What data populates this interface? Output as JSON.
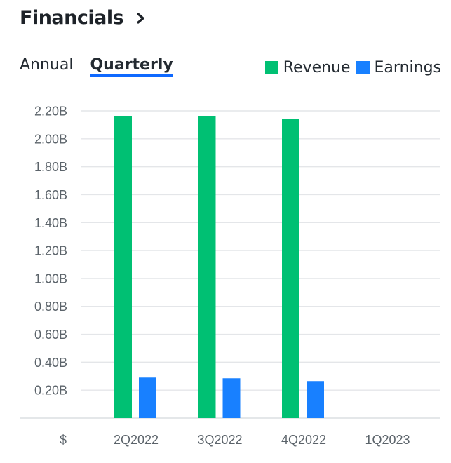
{
  "header": {
    "title": "Financials",
    "chevron_icon": "chevron-right-icon"
  },
  "tabs": [
    {
      "label": "Annual",
      "active": false
    },
    {
      "label": "Quarterly",
      "active": true
    }
  ],
  "legend": [
    {
      "label": "Revenue",
      "color": "#00c073"
    },
    {
      "label": "Earnings",
      "color": "#1880ff"
    }
  ],
  "chart_data": {
    "type": "bar",
    "categories": [
      "2Q2022",
      "3Q2022",
      "4Q2022",
      "1Q2023"
    ],
    "series": [
      {
        "name": "Revenue",
        "color": "#00c073",
        "values": [
          2.16,
          2.16,
          2.14,
          null
        ]
      },
      {
        "name": "Earnings",
        "color": "#1880ff",
        "values": [
          0.29,
          0.285,
          0.265,
          null
        ]
      }
    ],
    "unit_label": "$",
    "ylim": [
      0,
      2.2
    ],
    "yticks": [
      0.2,
      0.4,
      0.6,
      0.8,
      1.0,
      1.2,
      1.4,
      1.6,
      1.8,
      2.0,
      2.2
    ],
    "ytick_labels": [
      "0.20B",
      "0.40B",
      "0.60B",
      "0.80B",
      "1.00B",
      "1.20B",
      "1.40B",
      "1.60B",
      "1.80B",
      "2.00B",
      "2.20B"
    ],
    "grid": true,
    "legend_position": "top-right"
  }
}
